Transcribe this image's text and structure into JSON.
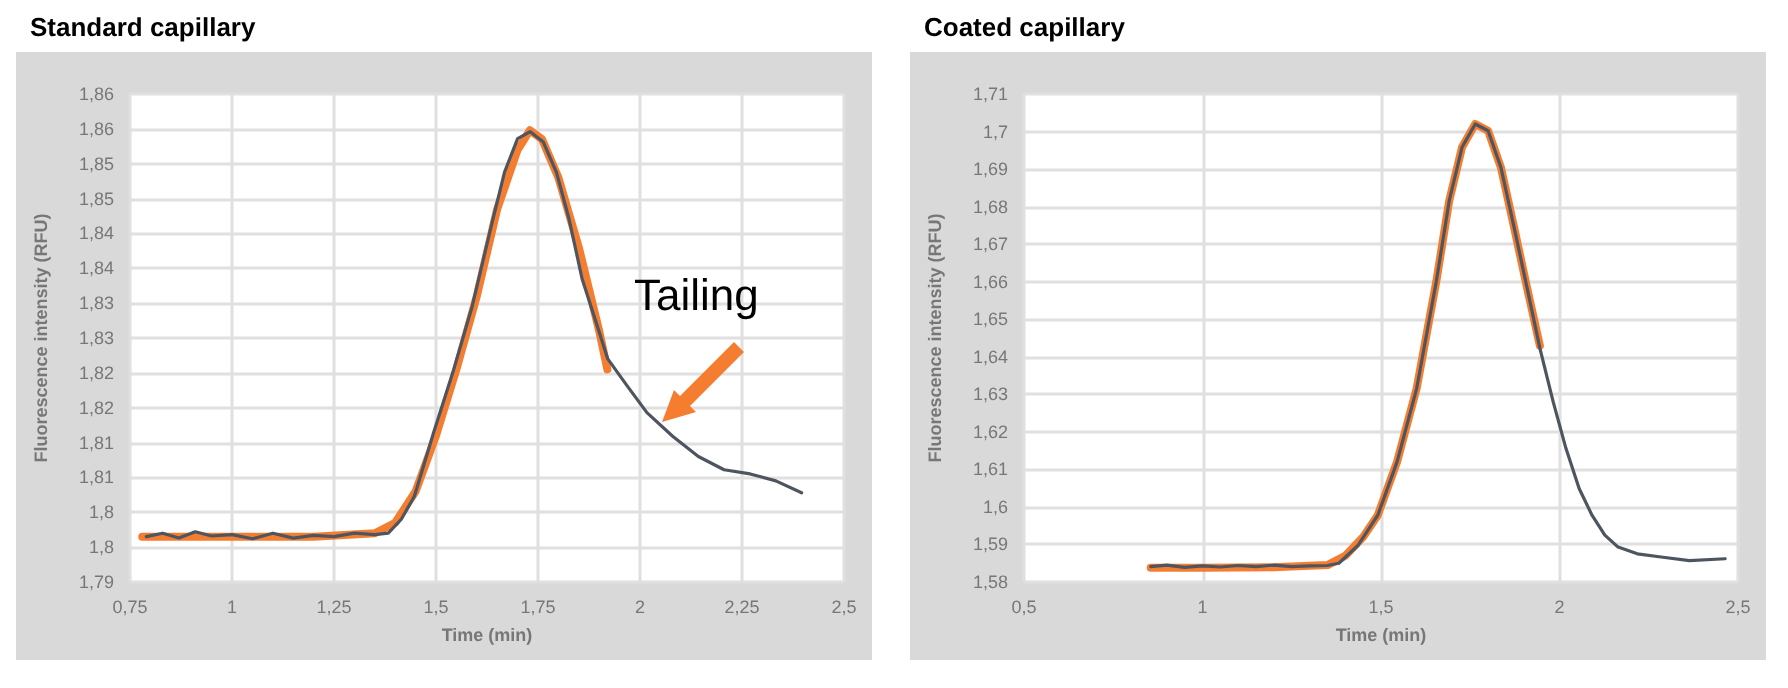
{
  "chart_data": [
    {
      "type": "line",
      "title": "Standard capillary",
      "xlabel": "Time (min)",
      "ylabel": "Fluorescence intensity (RFU)",
      "xlim": [
        0.75,
        2.5
      ],
      "xticks": [
        {
          "value": 0.75,
          "label": "0,75"
        },
        {
          "value": 1,
          "label": "1"
        },
        {
          "value": 1.25,
          "label": "1,25"
        },
        {
          "value": 1.5,
          "label": "1,5"
        },
        {
          "value": 1.75,
          "label": "1,75"
        },
        {
          "value": 2,
          "label": "2"
        },
        {
          "value": 2.25,
          "label": "2,25"
        },
        {
          "value": 2.5,
          "label": "2,5"
        }
      ],
      "ylim": [
        1.79,
        1.86
      ],
      "yticks": [
        {
          "value": 1.79,
          "label": "1,79"
        },
        {
          "value": 1.795,
          "label": "1,8"
        },
        {
          "value": 1.8,
          "label": "1,8"
        },
        {
          "value": 1.805,
          "label": "1,81"
        },
        {
          "value": 1.81,
          "label": "1,81"
        },
        {
          "value": 1.815,
          "label": "1,82"
        },
        {
          "value": 1.82,
          "label": "1,82"
        },
        {
          "value": 1.825,
          "label": "1,83"
        },
        {
          "value": 1.83,
          "label": "1,83"
        },
        {
          "value": 1.835,
          "label": "1,84"
        },
        {
          "value": 1.84,
          "label": "1,84"
        },
        {
          "value": 1.845,
          "label": "1,85"
        },
        {
          "value": 1.85,
          "label": "1,85"
        },
        {
          "value": 1.855,
          "label": "1,86"
        },
        {
          "value": 1.86,
          "label": "1,86"
        }
      ],
      "grid": true,
      "marker": "none",
      "line_style": "solid",
      "annotations": [
        "Tailing"
      ],
      "series": [
        {
          "color": "#f47d30",
          "x": [
            0.78,
            1.0,
            1.2,
            1.35,
            1.4,
            1.45,
            1.5,
            1.55,
            1.6,
            1.65,
            1.7,
            1.73,
            1.76,
            1.8,
            1.85,
            1.9,
            1.92
          ],
          "values": [
            1.7965,
            1.7965,
            1.7965,
            1.797,
            1.7985,
            1.803,
            1.811,
            1.8205,
            1.831,
            1.8435,
            1.852,
            1.8548,
            1.8535,
            1.848,
            1.838,
            1.826,
            1.8205
          ]
        },
        {
          "color": "#4d5660",
          "x": [
            0.79,
            0.83,
            0.87,
            0.91,
            0.95,
            1.0,
            1.05,
            1.1,
            1.15,
            1.2,
            1.25,
            1.3,
            1.35,
            1.383,
            1.415,
            1.447,
            1.494,
            1.541,
            1.589,
            1.636,
            1.668,
            1.7,
            1.731,
            1.763,
            1.795,
            1.826,
            1.858,
            1.89,
            1.921,
            1.969,
            2.017,
            2.08,
            2.143,
            2.206,
            2.27,
            2.333,
            2.396
          ],
          "values": [
            1.7965,
            1.797,
            1.7963,
            1.7972,
            1.7966,
            1.7968,
            1.7962,
            1.797,
            1.7963,
            1.7967,
            1.7965,
            1.797,
            1.7968,
            1.797,
            1.799,
            1.8023,
            1.8114,
            1.82,
            1.8296,
            1.8412,
            1.8488,
            1.8536,
            1.8546,
            1.8531,
            1.8488,
            1.8421,
            1.8335,
            1.8277,
            1.822,
            1.8181,
            1.8143,
            1.8109,
            1.808,
            1.8061,
            1.8055,
            1.8045,
            1.8028
          ]
        }
      ]
    },
    {
      "type": "line",
      "title": "Coated capillary",
      "xlabel": "Time (min)",
      "ylabel": "Fluorescence intensity (RFU)",
      "xlim": [
        0.5,
        2.5
      ],
      "xticks": [
        {
          "value": 0.5,
          "label": "0,5"
        },
        {
          "value": 1,
          "label": "1"
        },
        {
          "value": 1.5,
          "label": "1,5"
        },
        {
          "value": 2,
          "label": "2"
        },
        {
          "value": 2.5,
          "label": "2,5"
        }
      ],
      "ylim": [
        1.58,
        1.71
      ],
      "yticks": [
        {
          "value": 1.58,
          "label": "1,58"
        },
        {
          "value": 1.59,
          "label": "1,59"
        },
        {
          "value": 1.6,
          "label": "1,6"
        },
        {
          "value": 1.61,
          "label": "1,61"
        },
        {
          "value": 1.62,
          "label": "1,62"
        },
        {
          "value": 1.63,
          "label": "1,63"
        },
        {
          "value": 1.64,
          "label": "1,64"
        },
        {
          "value": 1.65,
          "label": "1,65"
        },
        {
          "value": 1.66,
          "label": "1,66"
        },
        {
          "value": 1.67,
          "label": "1,67"
        },
        {
          "value": 1.68,
          "label": "1,68"
        },
        {
          "value": 1.69,
          "label": "1,69"
        },
        {
          "value": 1.7,
          "label": "1,7"
        },
        {
          "value": 1.71,
          "label": "1,71"
        }
      ],
      "grid": true,
      "marker": "none",
      "line_style": "solid",
      "series": [
        {
          "color": "#f47d30",
          "x": [
            0.855,
            1.0,
            1.2,
            1.35,
            1.4,
            1.45,
            1.491,
            1.545,
            1.6,
            1.655,
            1.691,
            1.727,
            1.764,
            1.8,
            1.836,
            1.873,
            1.909,
            1.945
          ],
          "values": [
            1.5838,
            1.5838,
            1.5839,
            1.5845,
            1.587,
            1.592,
            1.5978,
            1.612,
            1.6316,
            1.6601,
            1.6815,
            1.6958,
            1.702,
            1.7002,
            1.6904,
            1.6744,
            1.6584,
            1.643
          ]
        },
        {
          "color": "#4d5660",
          "x": [
            0.855,
            0.9,
            0.95,
            1.0,
            1.05,
            1.1,
            1.15,
            1.2,
            1.25,
            1.3,
            1.35,
            1.382,
            1.436,
            1.491,
            1.545,
            1.6,
            1.655,
            1.691,
            1.727,
            1.764,
            1.8,
            1.836,
            1.873,
            1.909,
            1.945,
            1.982,
            2.018,
            2.055,
            2.091,
            2.127,
            2.164,
            2.218,
            2.29,
            2.364,
            2.464
          ],
          "values": [
            1.5841,
            1.5845,
            1.5839,
            1.5843,
            1.584,
            1.5844,
            1.5841,
            1.5845,
            1.5841,
            1.5843,
            1.5844,
            1.585,
            1.5898,
            1.5978,
            1.612,
            1.6316,
            1.6601,
            1.6815,
            1.6958,
            1.702,
            1.7002,
            1.6904,
            1.6744,
            1.6584,
            1.6423,
            1.6281,
            1.6156,
            1.6049,
            1.5978,
            1.5925,
            1.5893,
            1.5875,
            1.5866,
            1.5857,
            1.5862
          ]
        }
      ]
    }
  ]
}
